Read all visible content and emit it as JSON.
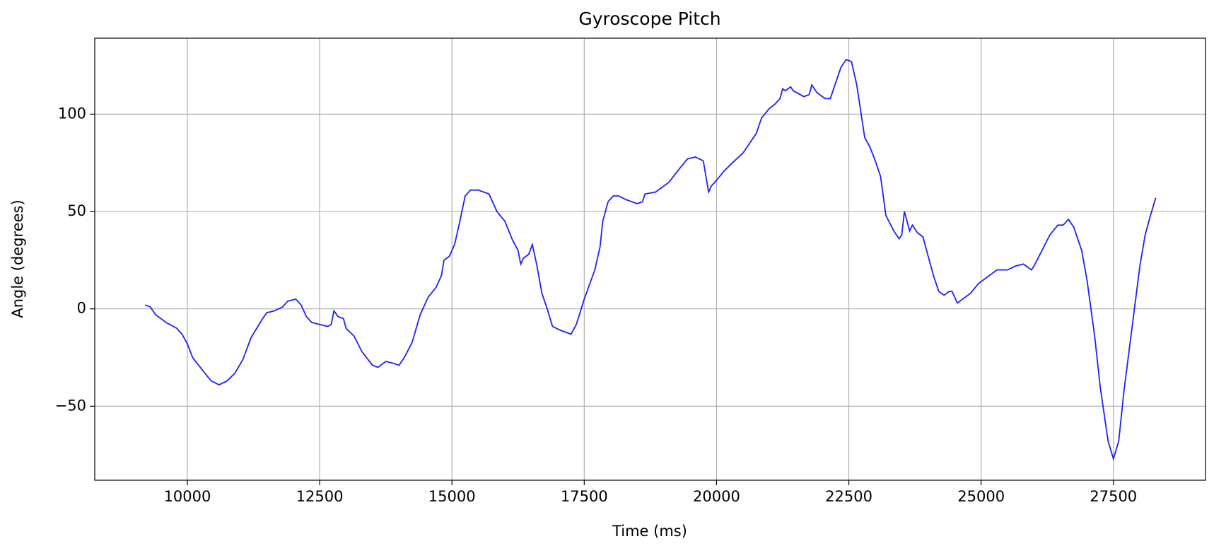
{
  "chart_data": {
    "type": "line",
    "title": "Gyroscope Pitch",
    "xlabel": "Time (ms)",
    "ylabel": "Angle (degrees)",
    "x": [
      9200,
      9300,
      9400,
      9600,
      9800,
      9900,
      10000,
      10100,
      10300,
      10450,
      10600,
      10750,
      10900,
      11050,
      11200,
      11400,
      11500,
      11650,
      11800,
      11900,
      12050,
      12150,
      12250,
      12350,
      12500,
      12650,
      12720,
      12770,
      12850,
      12950,
      13000,
      13150,
      13300,
      13500,
      13600,
      13750,
      13900,
      14000,
      14100,
      14250,
      14400,
      14550,
      14700,
      14800,
      14850,
      14950,
      15050,
      15150,
      15250,
      15350,
      15500,
      15700,
      15850,
      16000,
      16150,
      16250,
      16300,
      16350,
      16450,
      16520,
      16600,
      16700,
      16800,
      16900,
      17050,
      17250,
      17350,
      17500,
      17700,
      17800,
      17850,
      17950,
      18050,
      18150,
      18300,
      18500,
      18600,
      18650,
      18850,
      18950,
      19100,
      19300,
      19450,
      19600,
      19750,
      19850,
      19900,
      20000,
      20150,
      20300,
      20500,
      20650,
      20750,
      20850,
      21000,
      21100,
      21200,
      21250,
      21300,
      21400,
      21450,
      21650,
      21750,
      21800,
      21900,
      22050,
      22150,
      22250,
      22350,
      22450,
      22550,
      22650,
      22800,
      22900,
      23000,
      23100,
      23200,
      23350,
      23450,
      23500,
      23550,
      23650,
      23700,
      23800,
      23900,
      24000,
      24100,
      24200,
      24300,
      24400,
      24450,
      24550,
      24650,
      24800,
      24950,
      25150,
      25300,
      25500,
      25650,
      25800,
      25950,
      26000,
      26150,
      26300,
      26450,
      26550,
      26650,
      26750,
      26900,
      27000,
      27150,
      27250,
      27400,
      27500,
      27600,
      27700,
      27850,
      28000,
      28100,
      28200,
      28300
    ],
    "series": [
      {
        "name": "Pitch",
        "color": "#1f1fff",
        "values": [
          2,
          1,
          -3,
          -7,
          -10,
          -13,
          -18,
          -25,
          -32,
          -37,
          -39,
          -37,
          -33,
          -26,
          -15,
          -6,
          -2,
          -1,
          1,
          4,
          5,
          2,
          -4,
          -7,
          -8,
          -9,
          -8,
          -1,
          -4,
          -5,
          -10,
          -14,
          -22,
          -29,
          -30,
          -27,
          -28,
          -29,
          -25,
          -17,
          -3,
          6,
          11,
          17,
          25,
          27,
          33,
          45,
          58,
          61,
          61,
          59,
          50,
          45,
          35,
          30,
          23,
          26,
          28,
          33,
          23,
          8,
          0,
          -9,
          -11,
          -13,
          -8,
          5,
          20,
          32,
          45,
          55,
          58,
          58,
          56,
          54,
          55,
          59,
          60,
          62,
          65,
          72,
          77,
          78,
          76,
          60,
          63,
          66,
          71,
          75,
          80,
          86,
          90,
          98,
          103,
          105,
          108,
          113,
          112,
          114,
          112,
          109,
          110,
          115,
          111,
          108,
          108,
          116,
          124,
          128,
          127,
          115,
          88,
          83,
          76,
          68,
          48,
          40,
          36,
          38,
          50,
          40,
          43,
          39,
          37,
          27,
          17,
          9,
          7,
          9,
          9,
          3,
          5,
          8,
          13,
          17,
          20,
          20,
          22,
          23,
          20,
          22,
          30,
          38,
          43,
          43,
          46,
          42,
          30,
          15,
          -15,
          -40,
          -68,
          -77,
          -68,
          -42,
          -10,
          22,
          38,
          48,
          57
        ]
      }
    ],
    "xlim": [
      8250,
      29240
    ],
    "ylim": [
      -88,
      139
    ],
    "xticks": [
      10000,
      12500,
      15000,
      17500,
      20000,
      22500,
      25000,
      27500
    ],
    "yticks": [
      {
        "value": -50,
        "label": "−50"
      },
      0,
      50,
      100
    ],
    "grid": true
  }
}
